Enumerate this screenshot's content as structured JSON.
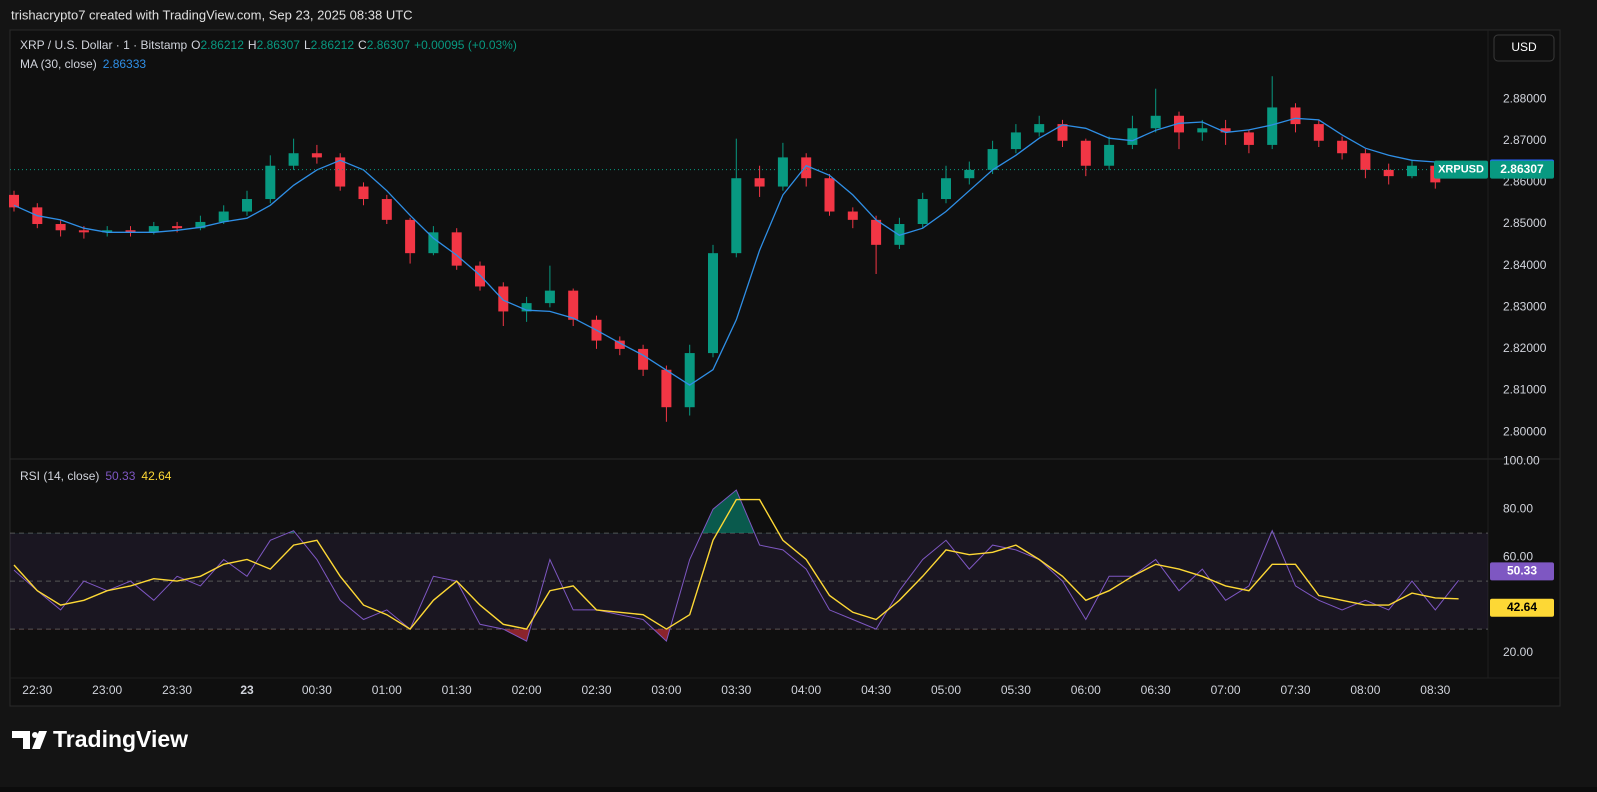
{
  "header": "trishacrypto7 created with TradingView.com, Sep 23, 2025 08:38 UTC",
  "footer": "TradingView",
  "chart_data": [
    {
      "type": "candlestick",
      "title": "XRP / U.S. Dollar · 1 · Bitstamp",
      "ohlc_labels": [
        "O",
        "H",
        "L",
        "C"
      ],
      "change": "+0.00095 (+0.03%)",
      "currency": "USD",
      "symbol": "XRPUSD",
      "categories": [
        null,
        "22:30",
        null,
        null,
        "23:00",
        null,
        null,
        "23:30",
        null,
        null,
        "23",
        null,
        null,
        "00:30",
        null,
        null,
        "01:00",
        null,
        null,
        "01:30",
        null,
        null,
        "02:00",
        null,
        null,
        "02:30",
        null,
        null,
        "03:00",
        null,
        null,
        "03:30",
        null,
        null,
        "04:00",
        null,
        null,
        "04:30",
        null,
        null,
        "05:00",
        null,
        null,
        "05:30",
        null,
        null,
        "06:00",
        null,
        null,
        "06:30",
        null,
        null,
        "07:00",
        null,
        null,
        "07:30",
        null,
        null,
        "08:00",
        null,
        null,
        "08:30",
        null
      ],
      "open": [
        2.857,
        2.854,
        2.85,
        2.8485,
        2.848,
        2.8485,
        2.848,
        2.8495,
        2.849,
        2.8505,
        2.853,
        2.856,
        2.864,
        2.867,
        2.866,
        2.859,
        2.856,
        2.851,
        2.843,
        2.848,
        2.84,
        2.835,
        2.829,
        2.831,
        2.834,
        2.827,
        2.822,
        2.82,
        2.815,
        2.806,
        2.819,
        2.843,
        2.861,
        2.859,
        2.866,
        2.861,
        2.853,
        2.851,
        2.845,
        2.85,
        2.856,
        2.861,
        2.863,
        2.868,
        2.872,
        2.874,
        2.87,
        2.864,
        2.869,
        2.873,
        2.876,
        2.872,
        2.873,
        2.872,
        2.869,
        2.878,
        2.874,
        2.87,
        2.867,
        2.863,
        2.8615,
        2.864,
        2.86212
      ],
      "high": [
        2.858,
        2.855,
        2.851,
        2.8495,
        2.8495,
        2.8495,
        2.8505,
        2.8505,
        2.852,
        2.8545,
        2.858,
        2.8665,
        2.8705,
        2.869,
        2.867,
        2.86,
        2.857,
        2.8515,
        2.8495,
        2.849,
        2.841,
        2.836,
        2.8325,
        2.84,
        2.8345,
        2.828,
        2.823,
        2.821,
        2.816,
        2.821,
        2.845,
        2.8705,
        2.864,
        2.8695,
        2.867,
        2.862,
        2.854,
        2.852,
        2.8515,
        2.8575,
        2.864,
        2.865,
        2.87,
        2.874,
        2.876,
        2.875,
        2.8705,
        2.871,
        2.876,
        2.8825,
        2.877,
        2.875,
        2.875,
        2.8725,
        2.8855,
        2.879,
        2.875,
        2.871,
        2.868,
        2.8645,
        2.8655,
        2.865,
        2.86307
      ],
      "low": [
        2.853,
        2.849,
        2.847,
        2.8465,
        2.847,
        2.847,
        2.8475,
        2.848,
        2.8485,
        2.85,
        2.852,
        2.855,
        2.863,
        2.8645,
        2.858,
        2.8545,
        2.85,
        2.8405,
        2.8425,
        2.839,
        2.834,
        2.8255,
        2.8265,
        2.83,
        2.8255,
        2.82,
        2.8185,
        2.8135,
        2.8025,
        2.804,
        2.818,
        2.842,
        2.8565,
        2.858,
        2.859,
        2.852,
        2.849,
        2.838,
        2.844,
        2.849,
        2.855,
        2.8595,
        2.862,
        2.867,
        2.871,
        2.8685,
        2.8615,
        2.863,
        2.868,
        2.872,
        2.868,
        2.87,
        2.869,
        2.867,
        2.868,
        2.872,
        2.8685,
        2.8655,
        2.861,
        2.8595,
        2.861,
        2.8585,
        2.86212
      ],
      "close": [
        2.854,
        2.85,
        2.8485,
        2.848,
        2.8485,
        2.848,
        2.8495,
        2.849,
        2.8505,
        2.853,
        2.856,
        2.864,
        2.867,
        2.866,
        2.859,
        2.856,
        2.851,
        2.843,
        2.848,
        2.84,
        2.835,
        2.829,
        2.831,
        2.834,
        2.827,
        2.822,
        2.82,
        2.815,
        2.806,
        2.819,
        2.843,
        2.861,
        2.859,
        2.866,
        2.861,
        2.853,
        2.851,
        2.845,
        2.85,
        2.856,
        2.861,
        2.863,
        2.868,
        2.872,
        2.874,
        2.87,
        2.864,
        2.869,
        2.873,
        2.876,
        2.872,
        2.873,
        2.872,
        2.869,
        2.878,
        2.874,
        2.87,
        2.867,
        2.863,
        2.8615,
        2.864,
        2.86,
        2.86307
      ],
      "up_color": "#089981",
      "down_color": "#f23645",
      "series": [
        {
          "name": "MA (30, close)",
          "color": "#2f8fe6",
          "values": [
            2.8545,
            2.852,
            2.851,
            2.849,
            2.848,
            2.848,
            2.848,
            2.8485,
            2.8492,
            2.8505,
            2.8514,
            2.8545,
            2.8593,
            2.863,
            2.8653,
            2.863,
            2.858,
            2.8521,
            2.8466,
            2.8425,
            2.8377,
            2.8317,
            2.8293,
            2.829,
            2.8274,
            2.8245,
            2.8214,
            2.8185,
            2.8149,
            2.8113,
            2.815,
            2.827,
            2.8437,
            2.857,
            2.864,
            2.8617,
            2.857,
            2.851,
            2.8473,
            2.849,
            2.853,
            2.858,
            2.863,
            2.8665,
            2.8706,
            2.8738,
            2.873,
            2.8706,
            2.87,
            2.8725,
            2.8742,
            2.8745,
            2.872,
            2.8726,
            2.8738,
            2.8754,
            2.875,
            2.8714,
            2.8682,
            2.8665,
            2.8653,
            2.8649,
            2.86333
          ]
        }
      ],
      "ylim": [
        2.7938,
        2.8966
      ],
      "yticks": [
        {
          "value": 2.8,
          "label": "2.80000"
        },
        {
          "value": 2.81,
          "label": "2.81000"
        },
        {
          "value": 2.82,
          "label": "2.82000"
        },
        {
          "value": 2.83,
          "label": "2.83000"
        },
        {
          "value": 2.84,
          "label": "2.84000"
        },
        {
          "value": 2.85,
          "label": "2.85000"
        },
        {
          "value": 2.86,
          "label": "2.86000"
        },
        {
          "value": 2.87,
          "label": "2.87000"
        },
        {
          "value": 2.88,
          "label": "2.88000"
        }
      ]
    },
    {
      "type": "line",
      "title": "RSI (14, close)",
      "series": [
        {
          "name": "RSI (14, close)",
          "color": "#7e57c2",
          "values": [
            54.6,
            46,
            38,
            50,
            46,
            50,
            42,
            52,
            48,
            59,
            52,
            67,
            71,
            59,
            42,
            34,
            38,
            30,
            52,
            50,
            32,
            30,
            25,
            59,
            38,
            38,
            36,
            34,
            25,
            59,
            80,
            88,
            65,
            63,
            55,
            38,
            34,
            30,
            46,
            59,
            67,
            55,
            65,
            63,
            59,
            50,
            34,
            52,
            52,
            59,
            46,
            55,
            42,
            48,
            71,
            48,
            42,
            38,
            42,
            38,
            50,
            38,
            50.33
          ]
        },
        {
          "color": "#fdd835",
          "values": [
            56.7,
            46,
            40,
            42,
            46,
            48,
            51,
            50,
            52,
            57,
            59,
            55,
            65,
            67,
            52,
            40,
            36,
            30,
            42,
            50,
            40,
            32,
            30,
            46,
            48,
            38,
            37,
            36,
            30,
            36,
            67,
            84,
            84,
            67,
            59,
            44,
            37,
            34,
            42,
            52,
            63,
            61,
            62,
            65,
            59,
            52,
            42,
            46,
            52,
            57,
            55,
            52,
            48,
            46,
            57,
            57,
            44,
            42,
            40,
            40,
            45,
            43,
            42.64
          ]
        }
      ],
      "levels": [
        70,
        50,
        30
      ],
      "band_color": "rgba(126,87,194,0.1)",
      "ob_color": "rgba(8,153,129,0.55)",
      "os_color": "rgba(242,54,69,0.55)",
      "ylim": [
        9.6,
        100.5
      ],
      "yticks": [
        {
          "value": 20,
          "label": "20.00"
        },
        {
          "value": 60,
          "label": "60.00"
        },
        {
          "value": 80,
          "label": "80.00"
        },
        {
          "value": 100,
          "label": "100.00"
        }
      ]
    }
  ]
}
